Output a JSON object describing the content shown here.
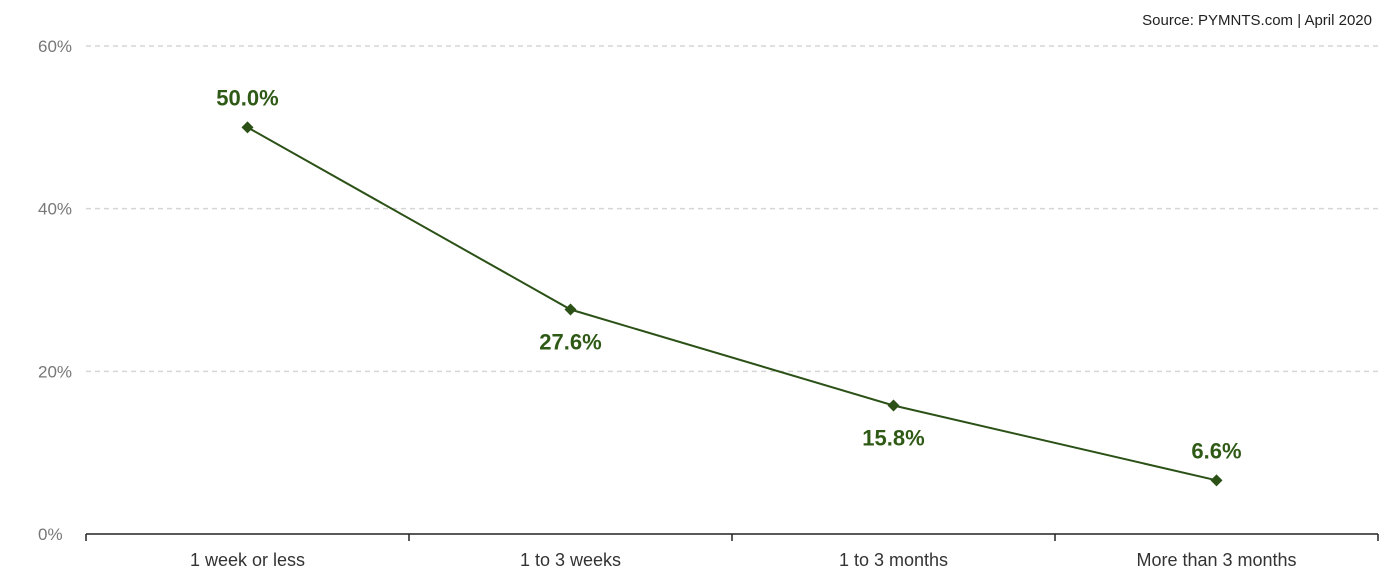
{
  "source": "Source: PYMNTS.com  |  April 2020",
  "colors": {
    "line": "#2b5117",
    "label": "#2f5a16",
    "grid": "#d6d6d6",
    "axis": "#222222"
  },
  "chart_data": {
    "type": "line",
    "categories": [
      "1 week or less",
      "1 to 3 weeks",
      "1 to 3 months",
      "More than 3 months"
    ],
    "values": [
      50.0,
      27.6,
      15.8,
      6.6
    ],
    "data_labels": [
      "50.0%",
      "27.6%",
      "15.8%",
      "6.6%"
    ],
    "ylim": [
      0,
      60
    ],
    "yticks": [
      0,
      20,
      40,
      60
    ],
    "ytick_labels": [
      "0%",
      "20%",
      "40%",
      "60%"
    ],
    "grid": true,
    "marker": "diamond",
    "title": "",
    "xlabel": "",
    "ylabel": ""
  }
}
